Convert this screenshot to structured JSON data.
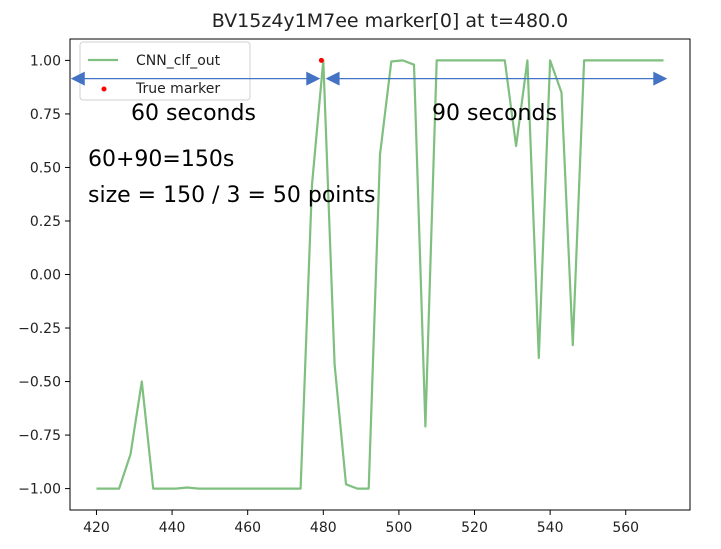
{
  "chart_data": {
    "type": "line",
    "title": "BV15z4y1M7ee marker[0] at t=480.0",
    "xlabel": "",
    "ylabel": "",
    "xlim": [
      413,
      577
    ],
    "ylim": [
      -1.1,
      1.1
    ],
    "xticks": [
      420,
      440,
      460,
      480,
      500,
      520,
      540,
      560
    ],
    "yticks": [
      1.0,
      0.75,
      0.5,
      0.25,
      0.0,
      -0.25,
      -0.5,
      -0.75,
      -1.0
    ],
    "ytick_labels": [
      "1.00",
      "0.75",
      "0.50",
      "0.25",
      "0.00",
      "−0.25",
      "−0.50",
      "−0.75",
      "−1.00"
    ],
    "grid": false,
    "legend_position": "upper-left",
    "series": [
      {
        "name": "CNN_clf_out",
        "kind": "line",
        "color": "#7fbf7f",
        "x": [
          420,
          423,
          426,
          429,
          432,
          435,
          438,
          441,
          444,
          447,
          450,
          453,
          456,
          459,
          462,
          465,
          468,
          471,
          474,
          477,
          480,
          483,
          486,
          489,
          492,
          495,
          498,
          501,
          504,
          507,
          510,
          513,
          516,
          519,
          522,
          525,
          528,
          531,
          534,
          537,
          540,
          543,
          546,
          549,
          552,
          555,
          558,
          561,
          564,
          567,
          570
        ],
        "y": [
          -1.0,
          -1.0,
          -1.0,
          -0.84,
          -0.5,
          -1.0,
          -1.0,
          -1.0,
          -0.995,
          -1.0,
          -1.0,
          -1.0,
          -1.0,
          -1.0,
          -1.0,
          -1.0,
          -1.0,
          -1.0,
          -1.0,
          0.42,
          1.0,
          -0.42,
          -0.98,
          -1.0,
          -1.0,
          0.56,
          0.995,
          1.0,
          0.98,
          -0.71,
          1.0,
          1.0,
          1.0,
          1.0,
          1.0,
          1.0,
          1.0,
          0.6,
          1.0,
          -0.39,
          1.0,
          0.85,
          -0.33,
          1.0,
          1.0,
          1.0,
          1.0,
          1.0,
          1.0,
          1.0,
          1.0
        ]
      },
      {
        "name": "True marker",
        "kind": "scatter",
        "color": "#ff0000",
        "x": [
          479.5
        ],
        "y": [
          1.0
        ]
      }
    ],
    "annotations": {
      "left_arrow_label": "60 seconds",
      "right_arrow_label": "90 seconds",
      "sum_label": "60+90=150s",
      "size_label": "size = 150 / 3 = 50 points",
      "arrow_color": "#4472c4"
    }
  }
}
